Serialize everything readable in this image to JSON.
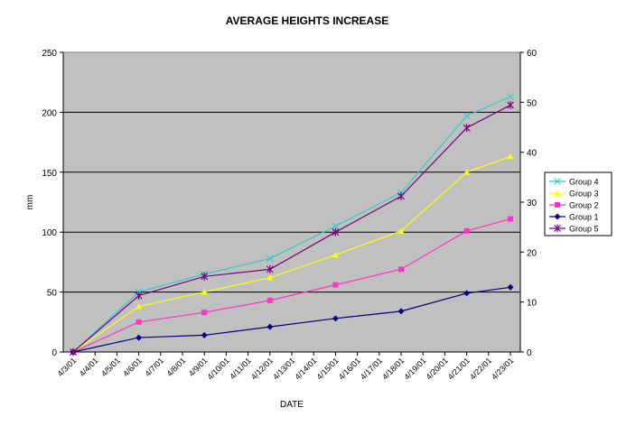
{
  "chart_data": {
    "type": "line",
    "title": "AVERAGE HEIGHTS INCREASE",
    "xlabel": "DATE",
    "ylabel": "mm",
    "ylim": [
      0,
      250
    ],
    "y_ticks": [
      0,
      50,
      100,
      150,
      200,
      250
    ],
    "y2lim": [
      0,
      60
    ],
    "y2_ticks": [
      0,
      10,
      20,
      30,
      40,
      50,
      60
    ],
    "x_ticks": [
      "4/3/01",
      "4/4/01",
      "4/5/01",
      "4/6/01",
      "4/7/01",
      "4/8/01",
      "4/9/01",
      "4/10/01",
      "4/11/01",
      "4/12/01",
      "4/13/01",
      "4/14/01",
      "4/15/01",
      "4/16/01",
      "4/17/01",
      "4/18/01",
      "4/19/01",
      "4/20/01",
      "4/21/01",
      "4/22/01",
      "4/23/01"
    ],
    "x": [
      "4/3/01",
      "4/6/01",
      "4/9/01",
      "4/12/01",
      "4/15/01",
      "4/18/01",
      "4/21/01",
      "4/23/01"
    ],
    "grid": "horizontal",
    "legend_position": "right",
    "plot_background": "#c0c0c0",
    "series": [
      {
        "name": "Group 4",
        "color": "#33cccc",
        "marker": "x",
        "values": [
          0,
          50,
          65,
          78,
          105,
          133,
          197,
          213
        ]
      },
      {
        "name": "Group 3",
        "color": "#ffff00",
        "marker": "triangle",
        "values": [
          0,
          38,
          50,
          62,
          81,
          101,
          150,
          163
        ]
      },
      {
        "name": "Group 2",
        "color": "#ff33cc",
        "marker": "square",
        "values": [
          0,
          25,
          33,
          43,
          56,
          69,
          101,
          111
        ]
      },
      {
        "name": "Group 1",
        "color": "#000080",
        "marker": "diamond",
        "values": [
          0,
          12,
          14,
          21,
          28,
          34,
          49,
          54
        ]
      },
      {
        "name": "Group 5",
        "color": "#800080",
        "marker": "star",
        "values": [
          0,
          47,
          63,
          69,
          100,
          130,
          187,
          206
        ]
      }
    ]
  }
}
